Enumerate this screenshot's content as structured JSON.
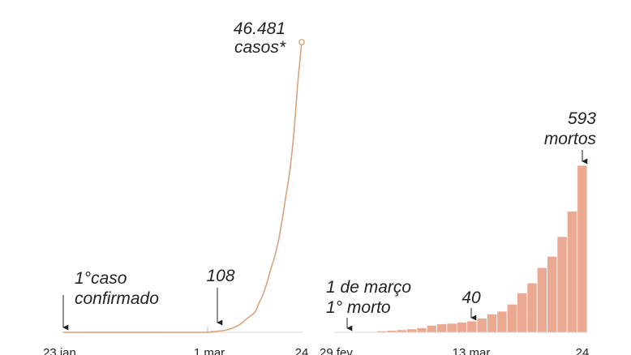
{
  "chart_data": [
    {
      "type": "line",
      "x_ticks": [
        "23 jan",
        "1 mar",
        "24"
      ],
      "x_start": "2020-01-23",
      "x_end": "2020-03-24",
      "x": [
        "2020-01-23",
        "2020-02-26",
        "2020-03-01",
        "2020-03-05",
        "2020-03-08",
        "2020-03-10",
        "2020-03-12",
        "2020-03-13",
        "2020-03-14",
        "2020-03-15",
        "2020-03-16",
        "2020-03-17",
        "2020-03-18",
        "2020-03-19",
        "2020-03-20",
        "2020-03-21",
        "2020-03-22",
        "2020-03-23",
        "2020-03-24"
      ],
      "values": [
        0,
        1,
        108,
        400,
        1200,
        2200,
        3200,
        4600,
        5900,
        7700,
        9900,
        12000,
        14500,
        18000,
        22000,
        26000,
        32000,
        40000,
        46481
      ],
      "colors": {
        "line": "#d9a27e",
        "axis": "#d5d5d5"
      },
      "annotations": [
        {
          "line1": "1°caso",
          "line2": "confirmado",
          "x": "2020-01-23"
        },
        {
          "line1": "108",
          "x": "2020-03-01"
        },
        {
          "line1": "46.481",
          "line2": "casos*",
          "x": "2020-03-24"
        }
      ]
    },
    {
      "type": "bar",
      "x_ticks": [
        "29 fev",
        "13 mar",
        "24"
      ],
      "categories": [
        "29 fev",
        "1 mar",
        "2 mar",
        "3 mar",
        "4 mar",
        "5 mar",
        "6 mar",
        "7 mar",
        "8 mar",
        "9 mar",
        "10 mar",
        "11 mar",
        "12 mar",
        "13 mar",
        "14 mar",
        "15 mar",
        "16 mar",
        "17 mar",
        "18 mar",
        "19 mar",
        "20 mar",
        "21 mar",
        "22 mar",
        "23 mar",
        "24 mar"
      ],
      "values": [
        0,
        1,
        1,
        2,
        5,
        7,
        9,
        12,
        16,
        25,
        30,
        32,
        36,
        40,
        50,
        65,
        75,
        100,
        140,
        175,
        230,
        270,
        340,
        430,
        593
      ],
      "colors": {
        "bar": "#eca991",
        "bar_edge": "#ffffff",
        "axis": "#d5d5d5"
      },
      "annotations": [
        {
          "line1": "1 de março",
          "line2": "1° morto",
          "category": "1 mar"
        },
        {
          "line1": "40",
          "category": "13 mar"
        },
        {
          "line1": "593",
          "line2": "mortos",
          "category": "24 mar"
        }
      ]
    }
  ]
}
